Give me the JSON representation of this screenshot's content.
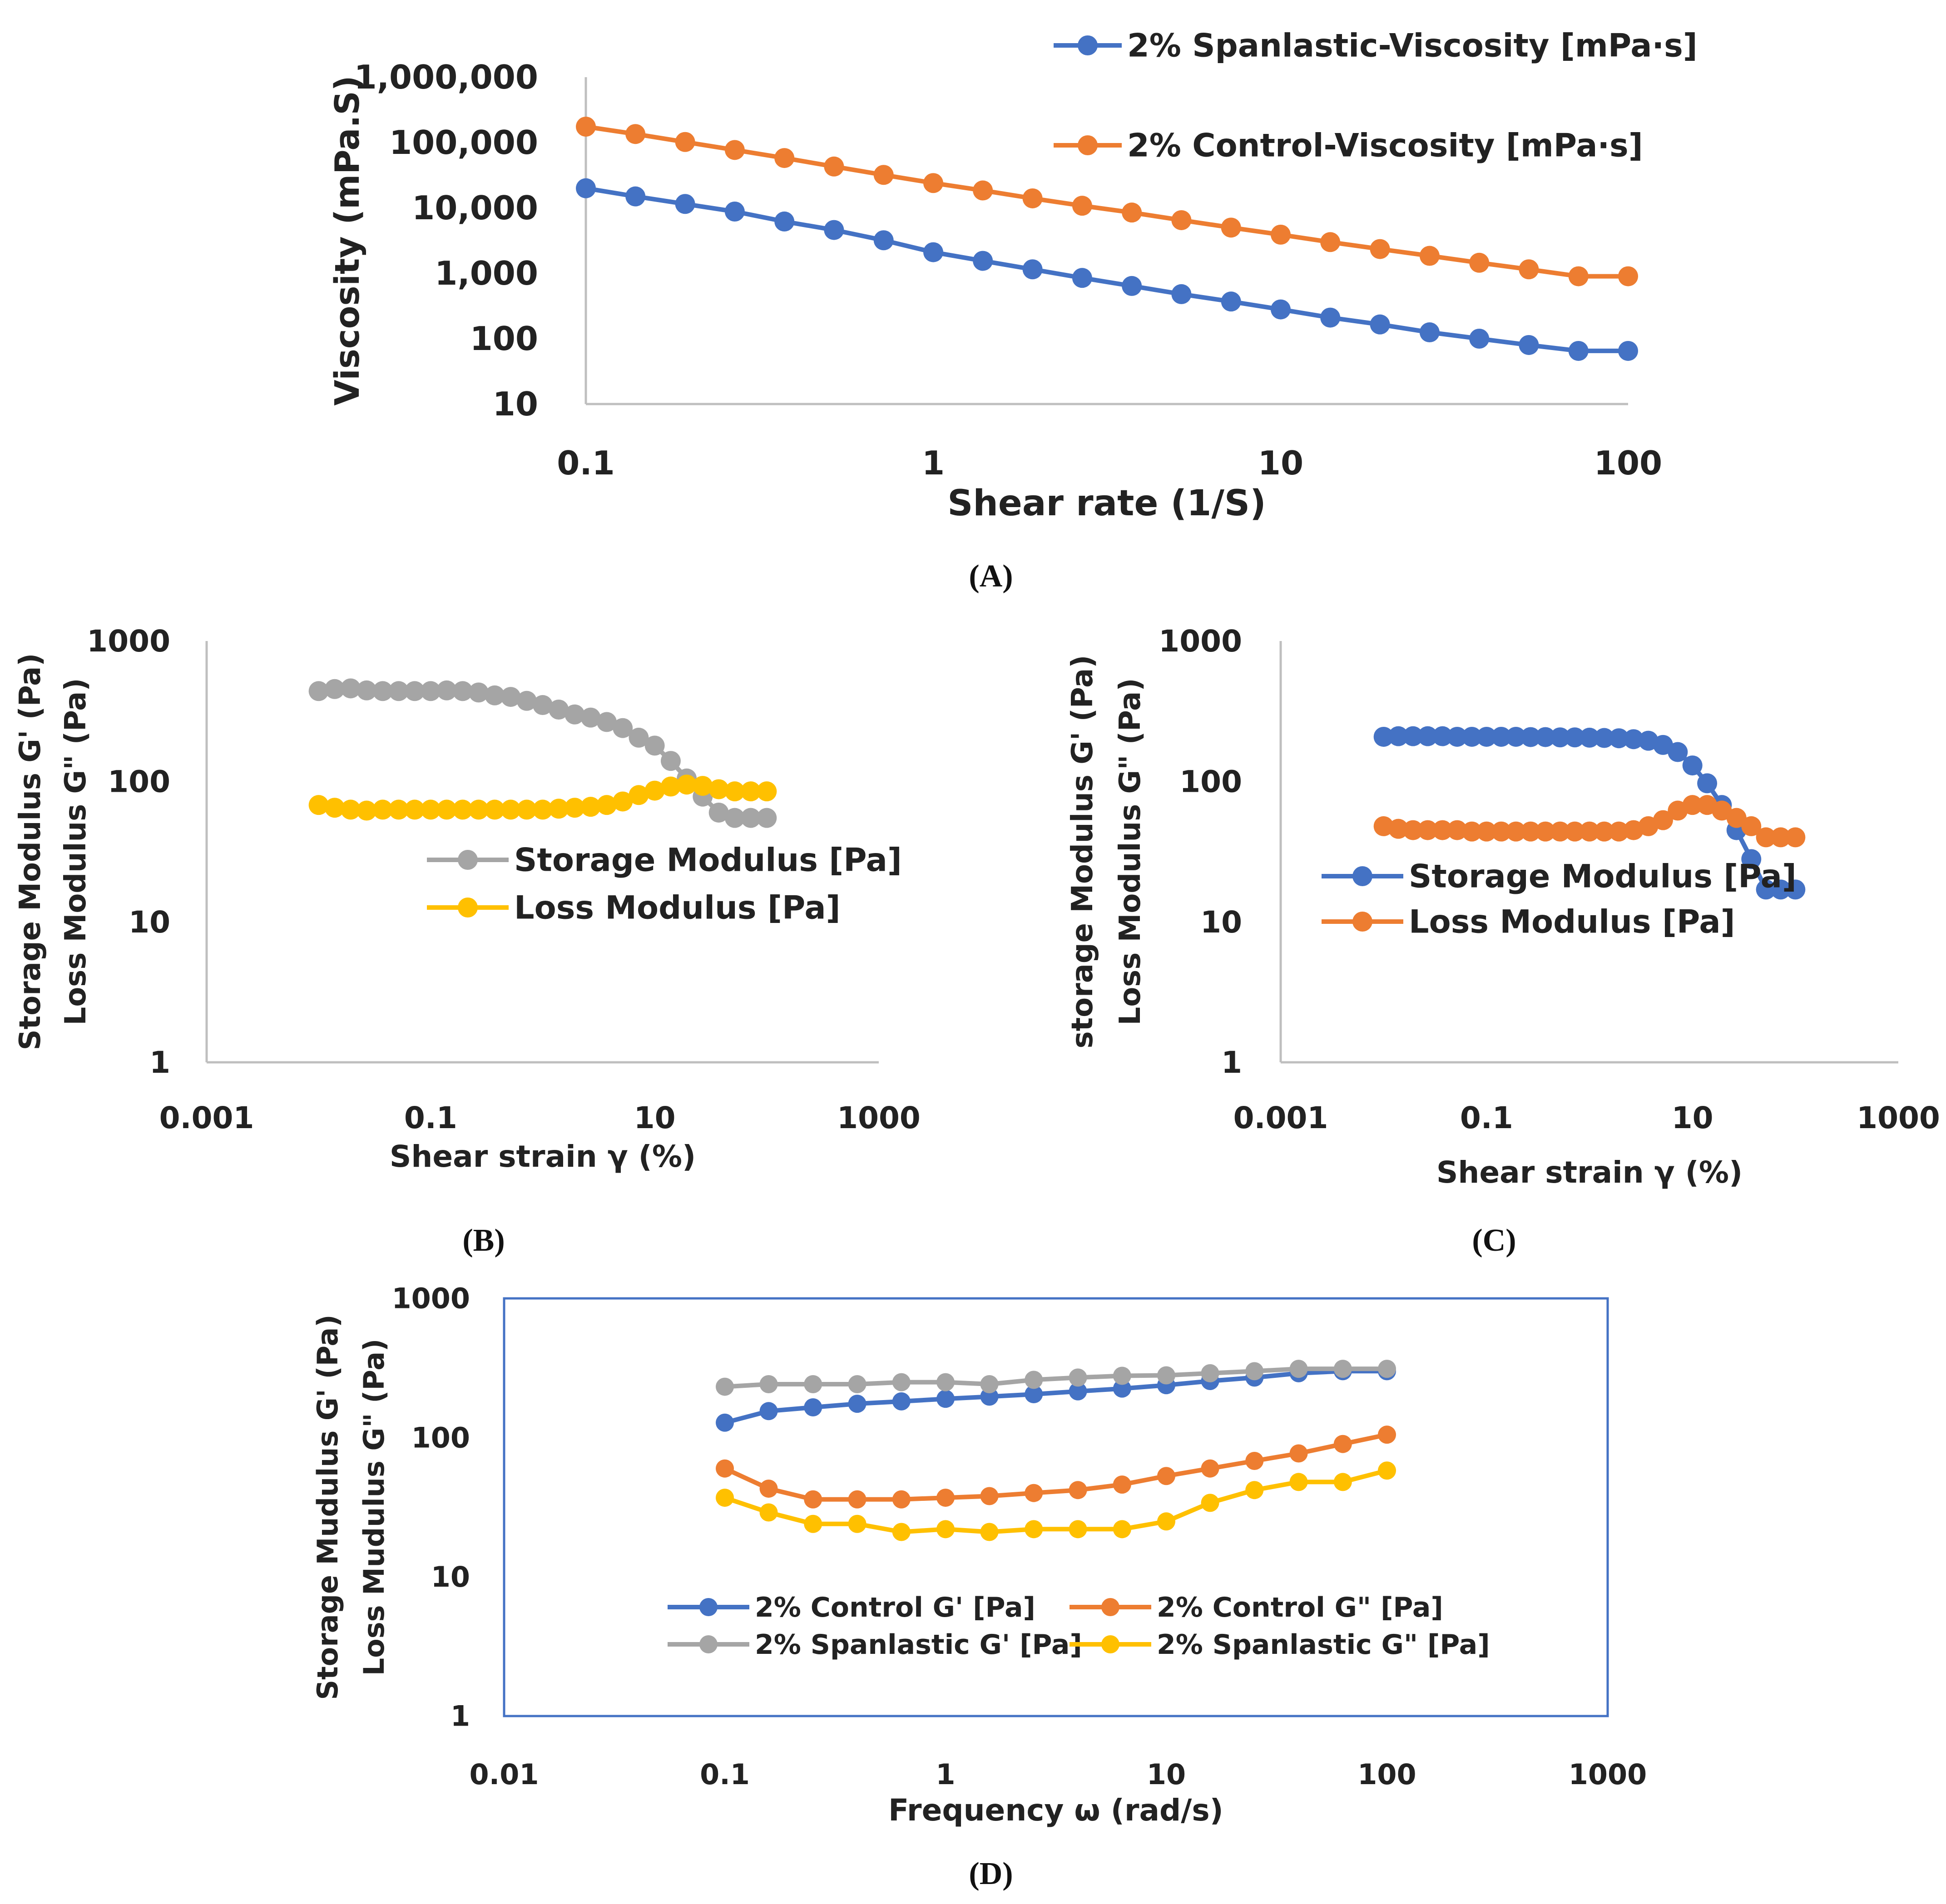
{
  "chart_data": [
    {
      "panel": "A",
      "caption": "(A)",
      "type": "line",
      "scale": "log-log",
      "xlabel": "Shear rate (1/S)",
      "ylabel": "Viscosity (mPa.S)",
      "xlim": [
        0.1,
        100
      ],
      "ylim": [
        10,
        1000000
      ],
      "xticks": [
        "0.1",
        "1",
        "10",
        "100"
      ],
      "yticks": [
        "10",
        "100",
        "1,000",
        "10,000",
        "100,000",
        "1,000,000"
      ],
      "grid": false,
      "legend_position": "top-right",
      "x": [
        0.1,
        0.1389,
        0.1931,
        0.2683,
        0.3728,
        0.5179,
        0.7197,
        1.0,
        1.389,
        1.931,
        2.683,
        3.728,
        5.179,
        7.197,
        10.0,
        13.89,
        19.31,
        26.83,
        37.28,
        51.79,
        71.97,
        100
      ],
      "series": [
        {
          "name": "2% Spanlastic-Viscosity [mPa·s]",
          "color": "#4472C4",
          "values": [
            20000,
            15000,
            11500,
            8800,
            6200,
            4600,
            3200,
            2100,
            1550,
            1150,
            850,
            640,
            480,
            370,
            280,
            210,
            165,
            125,
            100,
            80,
            65,
            65
          ]
        },
        {
          "name": "2% Control-Viscosity [mPa·s]",
          "color": "#ED7D31",
          "values": [
            175000,
            135000,
            102000,
            77000,
            58000,
            43000,
            32000,
            24000,
            18500,
            14000,
            10800,
            8500,
            6500,
            5000,
            3900,
            3000,
            2350,
            1850,
            1450,
            1150,
            900,
            900
          ]
        }
      ]
    },
    {
      "panel": "B",
      "caption": "(B)",
      "type": "line",
      "scale": "log-log",
      "xlabel": "Shear strain γ (%)",
      "ylabel": [
        "Storage Modulus G' (Pa)",
        "Loss Modulus G\" (Pa)"
      ],
      "xlim": [
        0.001,
        1000
      ],
      "ylim": [
        1,
        1000
      ],
      "xticks": [
        "0.001",
        "0.1",
        "10",
        "1000"
      ],
      "yticks": [
        "1",
        "10",
        "100",
        "1000"
      ],
      "grid": false,
      "legend_position": "center",
      "x": [
        0.01,
        0.0139,
        0.0193,
        0.0268,
        0.0373,
        0.0518,
        0.072,
        0.1,
        0.139,
        0.193,
        0.268,
        0.373,
        0.518,
        0.72,
        1.0,
        1.39,
        1.93,
        2.68,
        3.73,
        5.18,
        7.2,
        10,
        13.9,
        19.3,
        26.8,
        37.3,
        51.8,
        72,
        100
      ],
      "series": [
        {
          "name": "Storage Modulus [Pa]",
          "color": "#A5A5A5",
          "values": [
            440,
            455,
            460,
            445,
            440,
            440,
            440,
            440,
            445,
            440,
            430,
            410,
            400,
            375,
            350,
            325,
            300,
            285,
            265,
            240,
            205,
            180,
            140,
            105,
            78,
            60,
            55,
            55,
            55
          ]
        },
        {
          "name": "Loss Modulus [Pa]",
          "color": "#FFC000",
          "values": [
            68,
            65,
            63,
            62,
            63,
            63,
            63,
            63,
            63,
            63,
            63,
            63,
            63,
            63,
            63,
            64,
            65,
            66,
            68,
            72,
            80,
            86,
            92,
            95,
            93,
            88,
            85,
            85,
            85
          ]
        }
      ]
    },
    {
      "panel": "C",
      "caption": "(C)",
      "type": "line",
      "scale": "log-log",
      "xlabel": "Shear strain γ (%)",
      "ylabel": [
        "storage Modulus G' (Pa)",
        "Loss Modulus G\" (Pa)"
      ],
      "xlim": [
        0.001,
        1000
      ],
      "ylim": [
        1,
        1000
      ],
      "xticks": [
        "0.001",
        "0.1",
        "10",
        "1000"
      ],
      "yticks": [
        "1",
        "10",
        "100",
        "1000"
      ],
      "grid": false,
      "legend_position": "center",
      "x": [
        0.01,
        0.0139,
        0.0193,
        0.0268,
        0.0373,
        0.0518,
        0.072,
        0.1,
        0.139,
        0.193,
        0.268,
        0.373,
        0.518,
        0.72,
        1.0,
        1.39,
        1.93,
        2.68,
        3.73,
        5.18,
        7.2,
        10,
        13.9,
        19.3,
        26.8,
        37.3,
        51.8,
        72,
        100
      ],
      "series": [
        {
          "name": "Storage Modulus [Pa]",
          "color": "#4472C4",
          "values": [
            208,
            210,
            210,
            210,
            210,
            208,
            208,
            208,
            208,
            208,
            207,
            207,
            206,
            206,
            205,
            204,
            203,
            200,
            195,
            182,
            162,
            130,
            97,
            68,
            45,
            28,
            17,
            17,
            17
          ]
        },
        {
          "name": "Loss Modulus [Pa]",
          "color": "#ED7D31",
          "values": [
            48,
            46,
            45,
            45,
            45,
            45,
            44,
            44,
            44,
            44,
            44,
            44,
            44,
            44,
            44,
            44,
            44,
            45,
            48,
            53,
            62,
            68,
            68,
            62,
            55,
            48,
            40,
            40,
            40
          ]
        }
      ]
    },
    {
      "panel": "D",
      "caption": "(D)",
      "type": "line",
      "scale": "log-log",
      "xlabel": "Frequency ω (rad/s)",
      "ylabel": [
        "Storage Mudulus G' (Pa)",
        "Loss Mudulus G\" (Pa)"
      ],
      "xlim": [
        0.01,
        1000
      ],
      "ylim": [
        1,
        1000
      ],
      "xticks": [
        "0.01",
        "0.1",
        "1",
        "10",
        "100",
        "1000"
      ],
      "yticks": [
        "1",
        "10",
        "100",
        "1000"
      ],
      "grid": false,
      "legend_position": "bottom-center",
      "x": [
        0.1,
        0.158,
        0.251,
        0.398,
        0.631,
        1.0,
        1.58,
        2.51,
        3.98,
        6.31,
        10.0,
        15.8,
        25.1,
        39.8,
        63.1,
        100
      ],
      "series": [
        {
          "name": "2% Control G' [Pa]",
          "color": "#4472C4",
          "values": [
            128,
            155,
            165,
            175,
            182,
            190,
            197,
            205,
            215,
            225,
            238,
            255,
            270,
            290,
            300,
            300
          ]
        },
        {
          "name": "2% Control G\" [Pa]",
          "color": "#ED7D31",
          "values": [
            60,
            43,
            36,
            36,
            36,
            37,
            38,
            40,
            42,
            46,
            53,
            60,
            68,
            77,
            90,
            105
          ]
        },
        {
          "name": "2% Spanlastic G' [Pa]",
          "color": "#A5A5A5",
          "values": [
            232,
            242,
            242,
            242,
            250,
            250,
            242,
            260,
            270,
            278,
            280,
            290,
            300,
            312,
            312,
            312
          ]
        },
        {
          "name": "2% Spanlastic G\" [Pa]",
          "color": "#FFC000",
          "values": [
            37,
            29,
            24,
            24,
            21,
            22,
            21,
            22,
            22,
            22,
            25,
            34,
            42,
            48,
            48,
            58
          ]
        }
      ]
    }
  ]
}
